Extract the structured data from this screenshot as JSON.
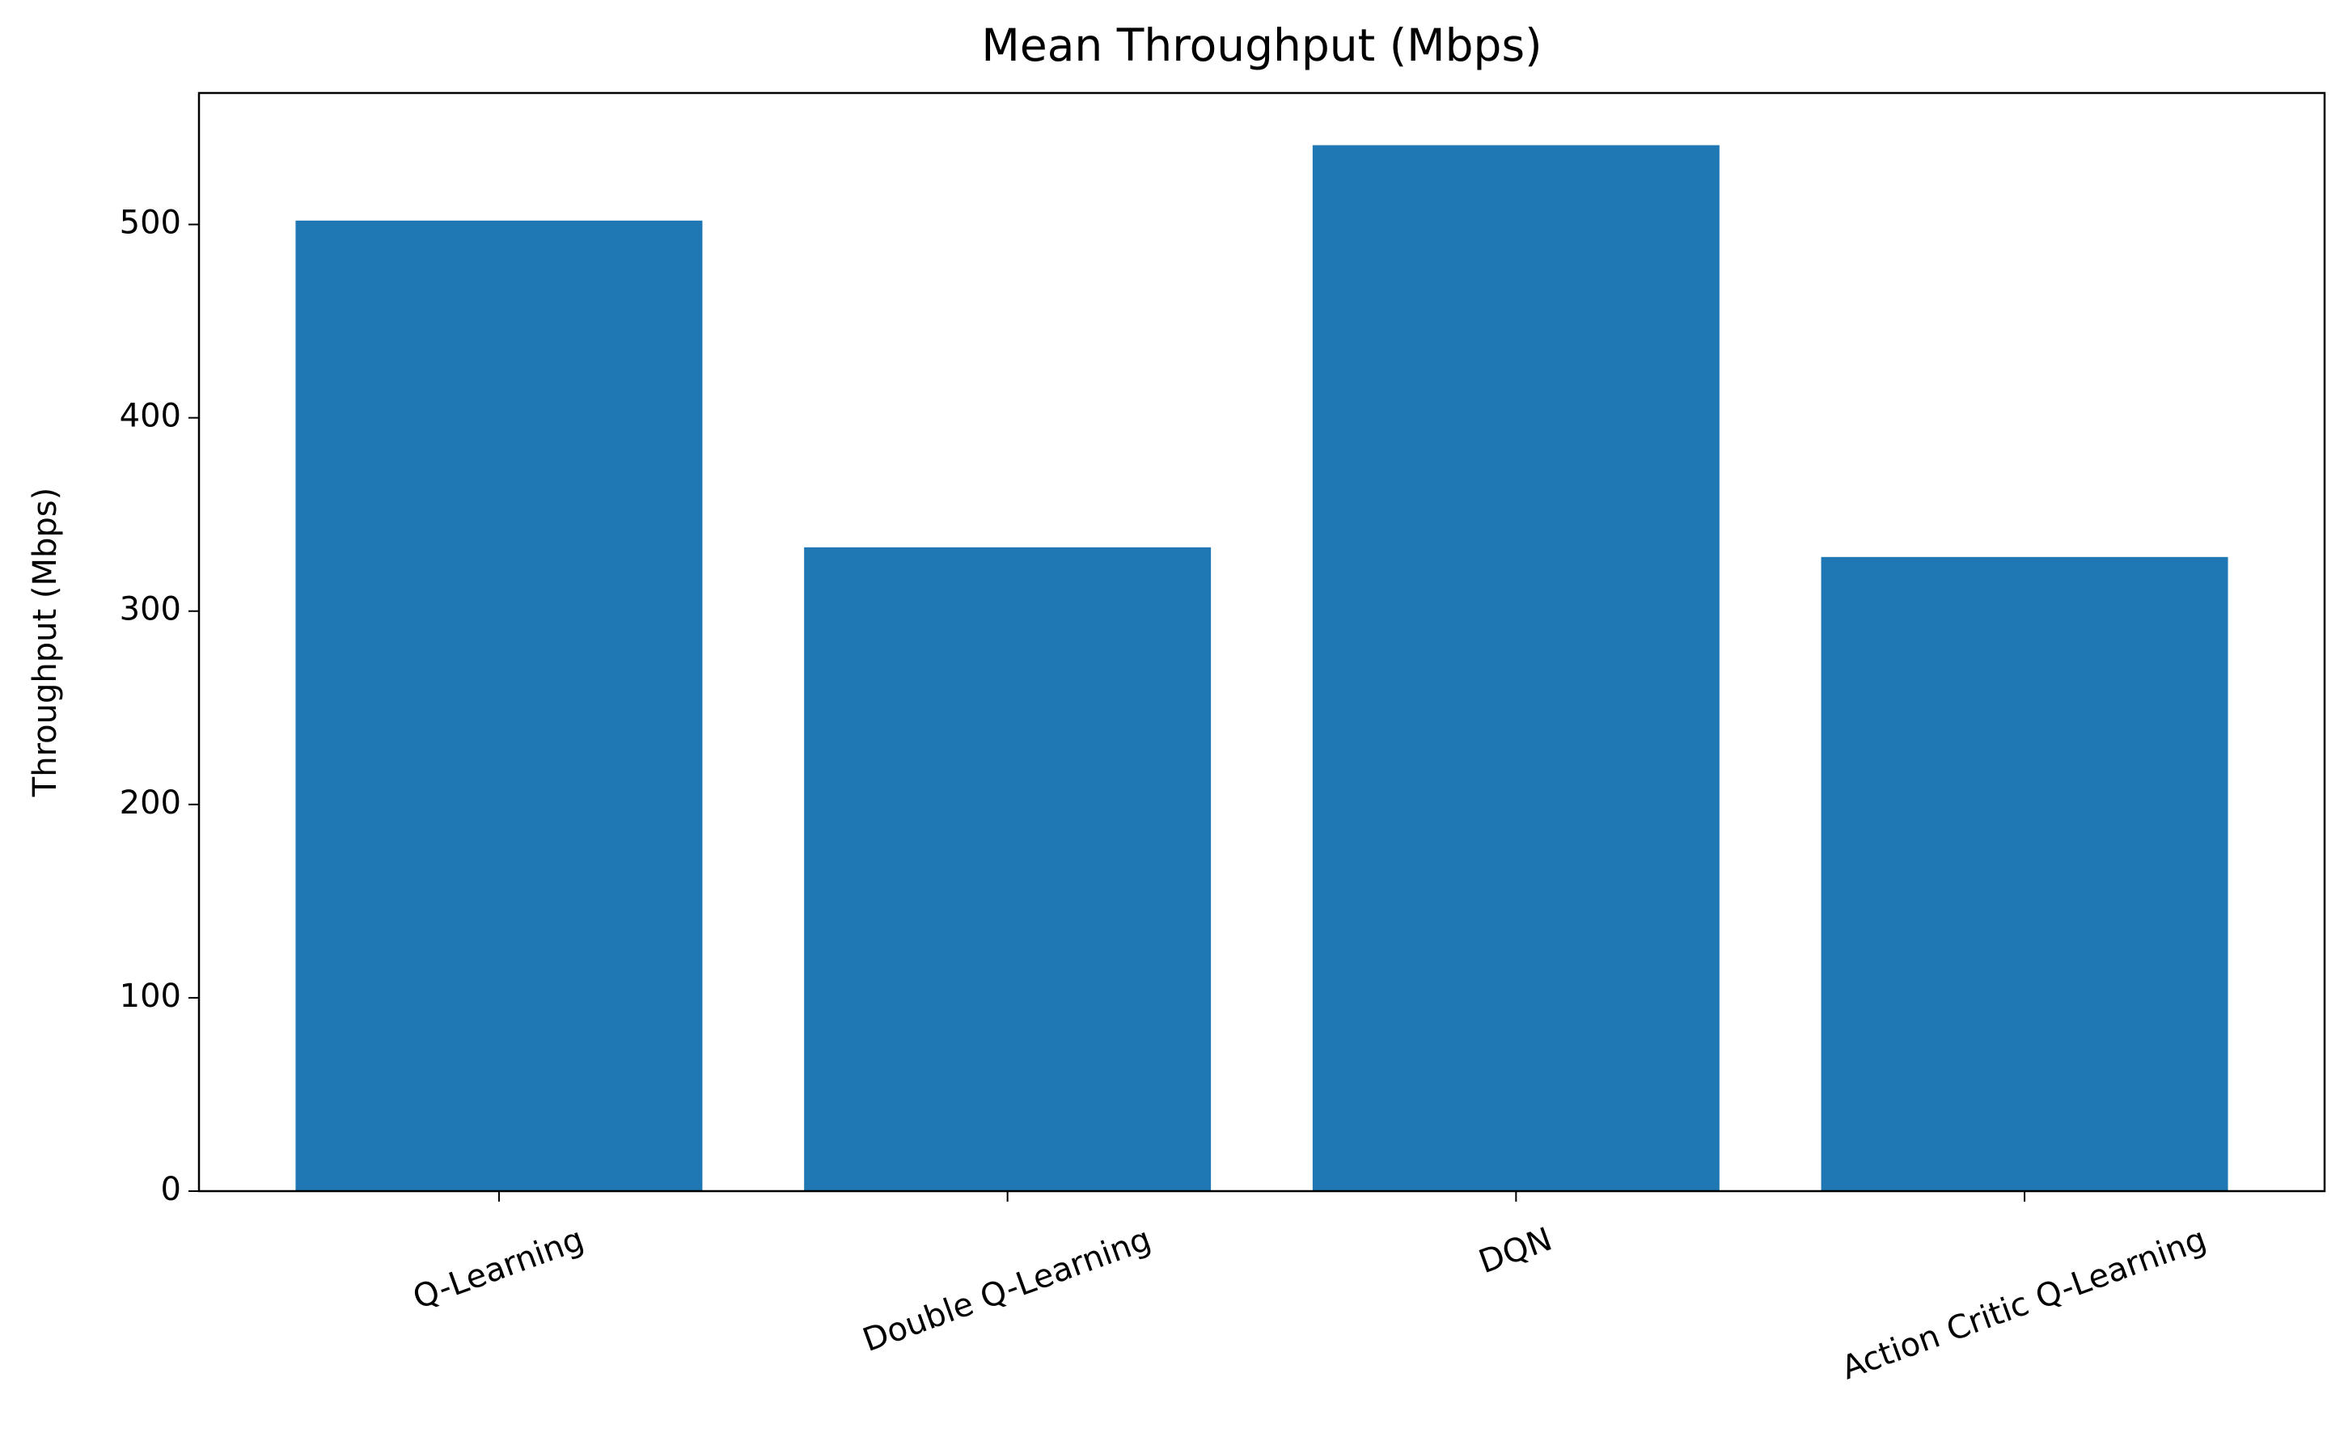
{
  "chart_data": {
    "type": "bar",
    "title": "Mean Throughput (Mbps)",
    "y_label": "Throughput (Mbps)",
    "categories": [
      "Q-Learning",
      "Double Q-Learning",
      "DQN",
      "Action Critic Q-Learning"
    ],
    "values": [
      502,
      333,
      541,
      328
    ],
    "color": "#1f77b4",
    "ylim": [
      0,
      568
    ],
    "yticks": [
      0,
      100,
      200,
      300,
      400,
      500
    ],
    "grid": false
  }
}
